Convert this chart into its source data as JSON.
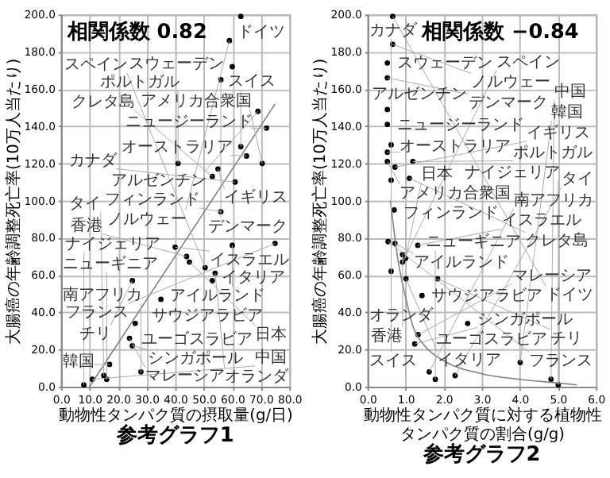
{
  "chart_data": [
    {
      "type": "scatter",
      "title": "参考グラフ1",
      "xlabel": "動物性タンパク質の摂取量(g/日)",
      "ylabel": "大腸癌の年齢調整死亡率(10万人当たり)",
      "grid": true,
      "xlim": [
        0,
        80
      ],
      "xticks": [
        {
          "value": 0,
          "label": "0.0"
        },
        {
          "value": 10,
          "label": "10.0"
        },
        {
          "value": 20,
          "label": "20.0"
        },
        {
          "value": 30,
          "label": "30.0"
        },
        {
          "value": 40,
          "label": "40.0"
        },
        {
          "value": 50,
          "label": "50.0"
        },
        {
          "value": 60,
          "label": "60.0"
        },
        {
          "value": 70,
          "label": "70.0"
        },
        {
          "value": 80,
          "label": "80.0"
        }
      ],
      "ylim": [
        0,
        200
      ],
      "yticks": [
        {
          "value": 0,
          "label": "0.0"
        },
        {
          "value": 20,
          "label": "20.0"
        },
        {
          "value": 40,
          "label": "40.0"
        },
        {
          "value": 60,
          "label": "60.0"
        },
        {
          "value": 80,
          "label": "80.0"
        },
        {
          "value": 100,
          "label": "100.0"
        },
        {
          "value": 120,
          "label": "120.0"
        },
        {
          "value": 140,
          "label": "140.0"
        },
        {
          "value": 160,
          "label": "160.0"
        },
        {
          "value": 180,
          "label": "180.0"
        },
        {
          "value": 200,
          "label": "200.0"
        }
      ],
      "series": [
        {
          "color": "#000000",
          "x": [
            63,
            59,
            60,
            56,
            69,
            72,
            63,
            65,
            70.5,
            41,
            55,
            53,
            61,
            56,
            75,
            60,
            40,
            44,
            45,
            50.5,
            54,
            53,
            25,
            35,
            26,
            24,
            25,
            17,
            28,
            15,
            11,
            16,
            8
          ],
          "values": [
            199,
            186,
            172,
            165,
            148,
            139,
            129,
            124,
            120,
            120,
            117,
            113,
            110,
            94,
            77,
            76,
            75,
            70,
            67,
            64,
            61,
            57,
            57,
            47,
            34,
            26,
            22,
            12,
            8,
            6,
            4,
            4,
            1
          ],
          "marker": "circle"
        },
        {
          "type": "line",
          "color": "#808080",
          "x": [
            10,
            75
          ],
          "values": [
            0,
            152
          ]
        }
      ],
      "annotations": [
        "相関係数 0.82",
        {
          "text": "ドイツ",
          "x": 63,
          "y": 199
        },
        {
          "text": "ノルウェー",
          "x": 59,
          "y": 186
        },
        {
          "text": "スウェーデン",
          "x": 60,
          "y": 172
        },
        {
          "text": "デンマーク",
          "x": 56,
          "y": 165
        },
        {
          "text": "アルゼンチン",
          "x": 69,
          "y": 148
        },
        {
          "text": "ニュージーランド",
          "x": 72,
          "y": 139
        },
        {
          "text": "スイス",
          "x": 63,
          "y": 129
        },
        {
          "text": "オーストラリア",
          "x": 65,
          "y": 124
        },
        {
          "text": "アメリカ合衆国",
          "x": 70.5,
          "y": 120
        },
        {
          "text": "ポルトガル",
          "x": 41,
          "y": 120
        },
        {
          "text": "イギリス",
          "x": 55,
          "y": 117
        },
        {
          "text": "クレタ島",
          "x": 53,
          "y": 113
        },
        {
          "text": "カナダ",
          "x": 61,
          "y": 110
        },
        {
          "text": "フィンランド",
          "x": 56,
          "y": 94
        },
        {
          "text": "フランス",
          "x": 75,
          "y": 77
        },
        {
          "text": "アイルランド",
          "x": 60,
          "y": 76
        },
        {
          "text": "イスラエル",
          "x": 40,
          "y": 75
        },
        {
          "text": "香港",
          "x": 44,
          "y": 70
        },
        {
          "text": "日本",
          "x": 45,
          "y": 67
        },
        {
          "text": "スペイン",
          "x": 50.5,
          "y": 64
        },
        {
          "text": "オランダ",
          "x": 54,
          "y": 61
        },
        {
          "text": "イタリア",
          "x": 53,
          "y": 57
        },
        {
          "text": "チリ",
          "x": 25,
          "y": 57
        },
        {
          "text": "サウジアラビア",
          "x": 35,
          "y": 47
        },
        {
          "text": "ユーゴスラビア",
          "x": 26,
          "y": 34
        },
        {
          "text": "マレーシア",
          "x": 24,
          "y": 26
        },
        {
          "text": "シンガポール",
          "x": 25,
          "y": 22
        },
        {
          "text": "韓国",
          "x": 17,
          "y": 12
        },
        {
          "text": "南アフリカ",
          "x": 28,
          "y": 7.5
        },
        {
          "text": "タイ",
          "x": 15,
          "y": 6
        },
        {
          "text": "中国",
          "x": 11,
          "y": 4
        },
        {
          "text": "ニューギニア",
          "x": 16,
          "y": 4
        },
        {
          "text": "ナイジェリア",
          "x": 8,
          "y": 1
        }
      ]
    },
    {
      "type": "scatter",
      "title": "参考グラフ2",
      "xlabel": "動物性タンパク質に対する植物性タンパク質の割合(g/g)",
      "ylabel": "大腸癌の年齢調整死亡率(10万人当たり)",
      "grid": true,
      "xlim": [
        0,
        6
      ],
      "xticks": [
        {
          "value": 0,
          "label": "0.0"
        },
        {
          "value": 1,
          "label": "1.0"
        },
        {
          "value": 2,
          "label": "2.0"
        },
        {
          "value": 3,
          "label": "3.0"
        },
        {
          "value": 4,
          "label": "4.0"
        },
        {
          "value": 5,
          "label": "5.0"
        },
        {
          "value": 6,
          "label": "6.0"
        }
      ],
      "ylim": [
        0,
        200
      ],
      "yticks": [
        {
          "value": 0,
          "label": "0.0"
        },
        {
          "value": 20,
          "label": "20.0"
        },
        {
          "value": 40,
          "label": "40.0"
        },
        {
          "value": 60,
          "label": "60.0"
        },
        {
          "value": 80,
          "label": "80.0"
        },
        {
          "value": 100,
          "label": "100.0"
        },
        {
          "value": 120,
          "label": "120.0"
        },
        {
          "value": 140,
          "label": "140.0"
        },
        {
          "value": 160,
          "label": "160.0"
        },
        {
          "value": 180,
          "label": "180.0"
        },
        {
          "value": 200,
          "label": "200.0"
        }
      ],
      "series": [
        {
          "color": "#000000",
          "x": [
            0.66,
            0.66,
            0.52,
            0.52,
            0.52,
            0.52,
            0.62,
            0.52,
            0.52,
            1.19,
            0.72,
            1.1,
            0.62,
            0.7,
            0.54,
            0.72,
            1.32,
            0.92,
            1.0,
            0.92,
            0.62,
            1.01,
            1.84,
            1.43,
            2.63,
            1.33,
            1.24,
            4.01,
            1.62,
            2.3,
            4.82,
            1.78,
            5.01
          ],
          "values": [
            199,
            184,
            174,
            166,
            149,
            141,
            130,
            126,
            121,
            121,
            118,
            112,
            111,
            95,
            78,
            77,
            76,
            71,
            69,
            67,
            62,
            58,
            58,
            49,
            34,
            28,
            23,
            13,
            8,
            6,
            4,
            4,
            1
          ],
          "marker": "circle"
        },
        {
          "type": "line",
          "color": "#808080",
          "x": [
            0.6,
            0.8,
            1.0,
            1.2,
            1.5,
            2.0,
            3.0,
            4.0,
            5.0,
            5.5
          ],
          "values": [
            100,
            68,
            48,
            32,
            22,
            14,
            7,
            4,
            2,
            1
          ]
        }
      ],
      "annotations": [
        "相関係数 −0.84",
        {
          "text": "ドイツ",
          "x": 0.66,
          "y": 199
        },
        {
          "text": "ノルウェー",
          "x": 0.66,
          "y": 184
        },
        {
          "text": "スウェーデン",
          "x": 0.52,
          "y": 174
        },
        {
          "text": "デンマーク",
          "x": 0.52,
          "y": 166
        },
        {
          "text": "アルゼンチン",
          "x": 0.52,
          "y": 149
        },
        {
          "text": "ニュージーランド",
          "x": 0.52,
          "y": 141
        },
        {
          "text": "スイス",
          "x": 0.62,
          "y": 130
        },
        {
          "text": "オーストラリア",
          "x": 0.52,
          "y": 126
        },
        {
          "text": "アメリカ合衆国",
          "x": 0.52,
          "y": 121
        },
        {
          "text": "ポルトガル",
          "x": 1.19,
          "y": 121
        },
        {
          "text": "イギリス",
          "x": 0.72,
          "y": 118
        },
        {
          "text": "クレタ島",
          "x": 1.1,
          "y": 112
        },
        {
          "text": "カナダ",
          "x": 0.62,
          "y": 111
        },
        {
          "text": "フィンランド",
          "x": 0.7,
          "y": 95
        },
        {
          "text": "フランス",
          "x": 0.54,
          "y": 78
        },
        {
          "text": "アイルランド",
          "x": 0.72,
          "y": 77
        },
        {
          "text": "イスラエル",
          "x": 1.32,
          "y": 76
        },
        {
          "text": "香港",
          "x": 0.92,
          "y": 71
        },
        {
          "text": "日本",
          "x": 1.0,
          "y": 69
        },
        {
          "text": "スペイン",
          "x": 0.92,
          "y": 67
        },
        {
          "text": "オランダ",
          "x": 0.62,
          "y": 62
        },
        {
          "text": "イタリア",
          "x": 1.01,
          "y": 58
        },
        {
          "text": "チリ",
          "x": 1.84,
          "y": 58
        },
        {
          "text": "サウジアラビア",
          "x": 1.43,
          "y": 49
        },
        {
          "text": "ユーゴスラビア",
          "x": 2.63,
          "y": 34
        },
        {
          "text": "マレーシア",
          "x": 1.33,
          "y": 28
        },
        {
          "text": "シンガポール",
          "x": 1.24,
          "y": 23
        },
        {
          "text": "韓国",
          "x": 4.01,
          "y": 13
        },
        {
          "text": "南アフリカ",
          "x": 1.62,
          "y": 8
        },
        {
          "text": "タイ",
          "x": 2.3,
          "y": 6
        },
        {
          "text": "中国",
          "x": 4.82,
          "y": 4
        },
        {
          "text": "ニューギニア",
          "x": 1.78,
          "y": 4
        },
        {
          "text": "ナイジェリア",
          "x": 5.01,
          "y": 1
        }
      ]
    }
  ]
}
